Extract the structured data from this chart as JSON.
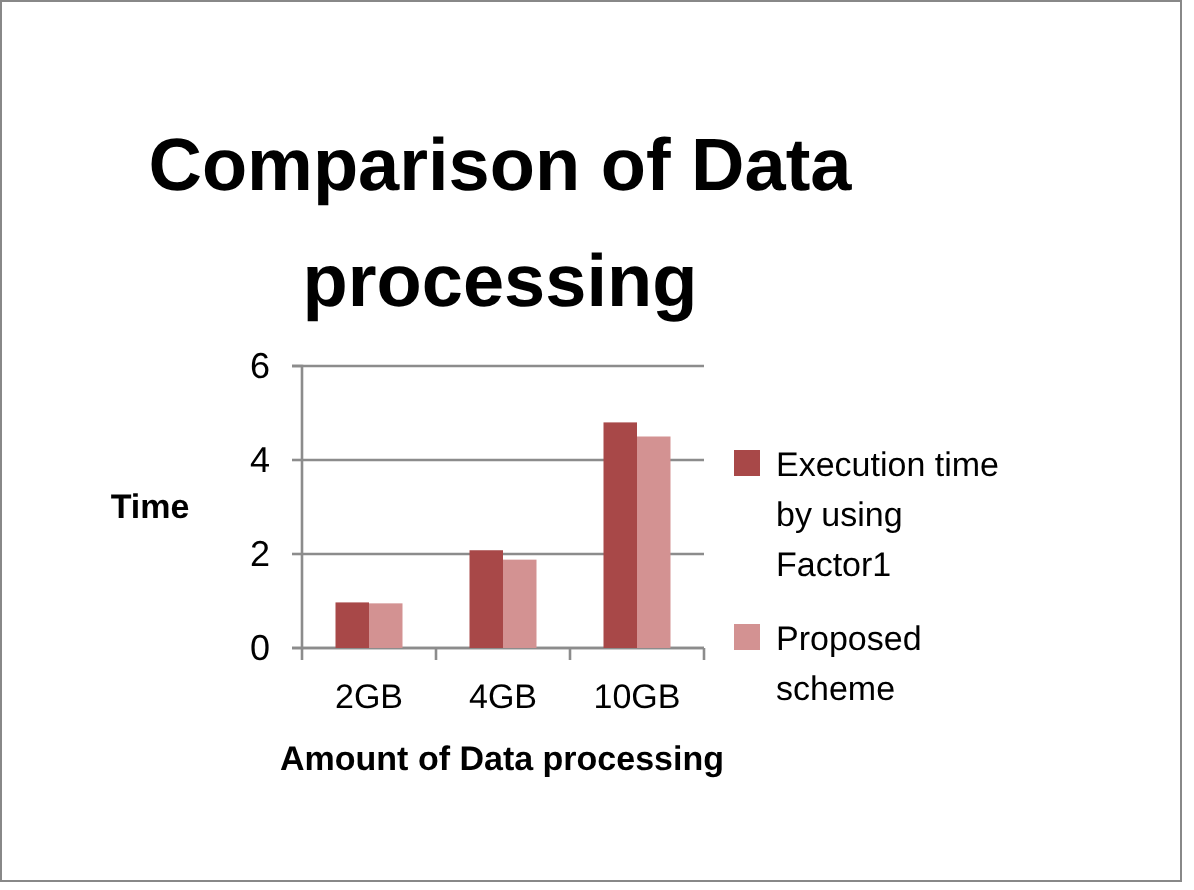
{
  "chart_data": {
    "type": "bar",
    "title": "Comparison of Data processing",
    "xlabel": "Amount of Data processing",
    "ylabel": "Time",
    "categories": [
      "2GB",
      "4GB",
      "10GB"
    ],
    "series": [
      {
        "name": "Execution time by using Factor1",
        "color": "#a84848",
        "values": [
          0.97,
          2.08,
          4.8
        ]
      },
      {
        "name": "Proposed scheme",
        "color": "#d39292",
        "values": [
          0.95,
          1.88,
          4.5
        ]
      }
    ],
    "ylim": [
      0,
      6
    ],
    "yticks": [
      0,
      2,
      4,
      6
    ],
    "grid": "y",
    "legend": "right"
  }
}
